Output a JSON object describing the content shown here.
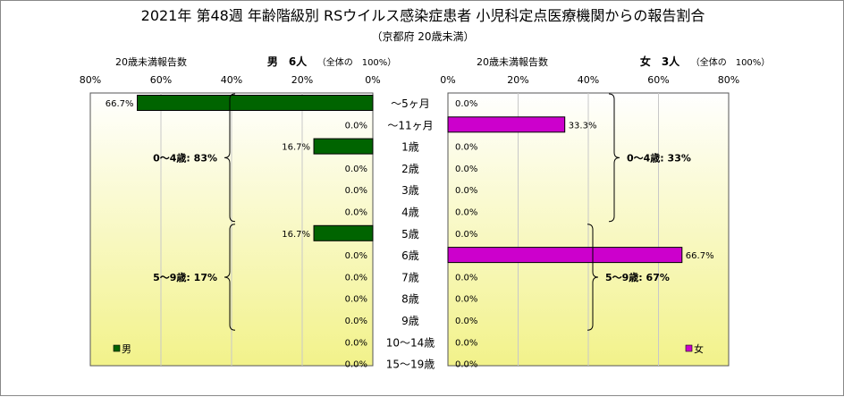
{
  "chart_data": {
    "type": "bar",
    "title": "2021年 第48週 年齢階級別 RSウイルス感染症患者 小児科定点医療機関からの報告割合",
    "subtitle": "（京都府 20歳未満）",
    "categories": [
      "～5ヶ月",
      "～11ヶ月",
      "1歳",
      "2歳",
      "3歳",
      "4歳",
      "5歳",
      "6歳",
      "7歳",
      "8歳",
      "9歳",
      "10～14歳",
      "15～19歳"
    ],
    "value_labels": {
      "male": [
        "66.7%",
        "0.0%",
        "16.7%",
        "0.0%",
        "0.0%",
        "0.0%",
        "16.7%",
        "0.0%",
        "0.0%",
        "0.0%",
        "0.0%",
        "0.0%",
        "0.0%"
      ],
      "female": [
        "0.0%",
        "33.3%",
        "0.0%",
        "0.0%",
        "0.0%",
        "0.0%",
        "0.0%",
        "66.7%",
        "0.0%",
        "0.0%",
        "0.0%",
        "0.0%",
        "0.0%"
      ]
    },
    "series": [
      {
        "name": "男",
        "color": "#006400",
        "values": [
          66.7,
          0.0,
          16.7,
          0.0,
          0.0,
          0.0,
          16.7,
          0.0,
          0.0,
          0.0,
          0.0,
          0.0,
          0.0
        ]
      },
      {
        "name": "女",
        "color": "#cc00cc",
        "values": [
          0.0,
          33.3,
          0.0,
          0.0,
          0.0,
          0.0,
          0.0,
          66.7,
          0.0,
          0.0,
          0.0,
          0.0,
          0.0
        ]
      }
    ],
    "panels": {
      "male": {
        "header_left": "20歳未満報告数",
        "header_right": "男　6人",
        "header_note": "（全体の　100%）",
        "ticks": [
          "80%",
          "60%",
          "40%",
          "20%",
          "0%"
        ],
        "xlim": [
          80,
          0
        ],
        "legend": "男",
        "groups": [
          {
            "label": "0～4歳: 83%",
            "from": 0,
            "to": 5
          },
          {
            "label": "5～9歳: 17%",
            "from": 6,
            "to": 10
          }
        ]
      },
      "female": {
        "header_left": "20歳未満報告数",
        "header_right": "女　3人",
        "header_note": "（全体の　100%）",
        "ticks": [
          "0%",
          "20%",
          "40%",
          "60%",
          "80%"
        ],
        "xlim": [
          0,
          80
        ],
        "legend": "女",
        "groups": [
          {
            "label": "0～4歳: 33%",
            "from": 0,
            "to": 5
          },
          {
            "label": "5～9歳: 67%",
            "from": 6,
            "to": 10
          }
        ]
      }
    },
    "grid": true,
    "legend_position": "bottom-left / bottom-right"
  }
}
